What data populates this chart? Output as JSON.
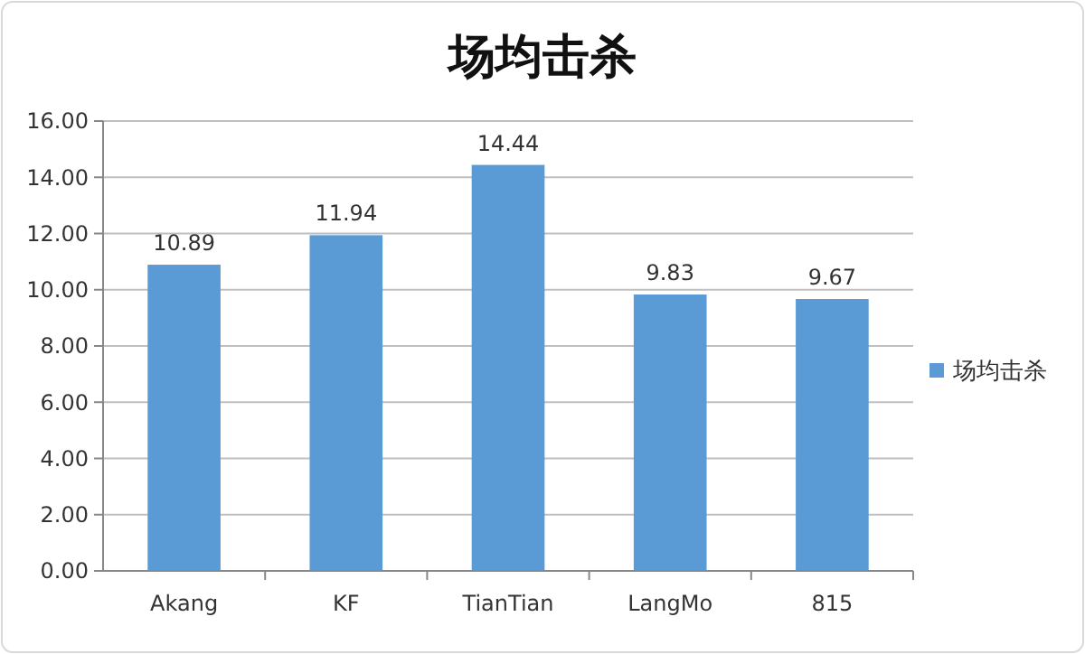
{
  "chart_data": {
    "type": "bar",
    "title": "场均击杀",
    "categories": [
      "Akang",
      "KF",
      "TianTian",
      "LangMo",
      "815"
    ],
    "series": [
      {
        "name": "场均击杀",
        "color": "#5b9bd5",
        "values": [
          10.89,
          11.94,
          14.44,
          9.83,
          9.67
        ]
      }
    ],
    "ylim": [
      0,
      16
    ],
    "yticks": [
      {
        "value": 0,
        "label": "0.00"
      },
      {
        "value": 2,
        "label": "2.00"
      },
      {
        "value": 4,
        "label": "4.00"
      },
      {
        "value": 6,
        "label": "6.00"
      },
      {
        "value": 8,
        "label": "8.00"
      },
      {
        "value": 10,
        "label": "10.00"
      },
      {
        "value": 12,
        "label": "12.00"
      },
      {
        "value": 14,
        "label": "14.00"
      },
      {
        "value": 16,
        "label": "16.00"
      }
    ],
    "grid": "y",
    "legend": "right",
    "data_labels": true
  }
}
